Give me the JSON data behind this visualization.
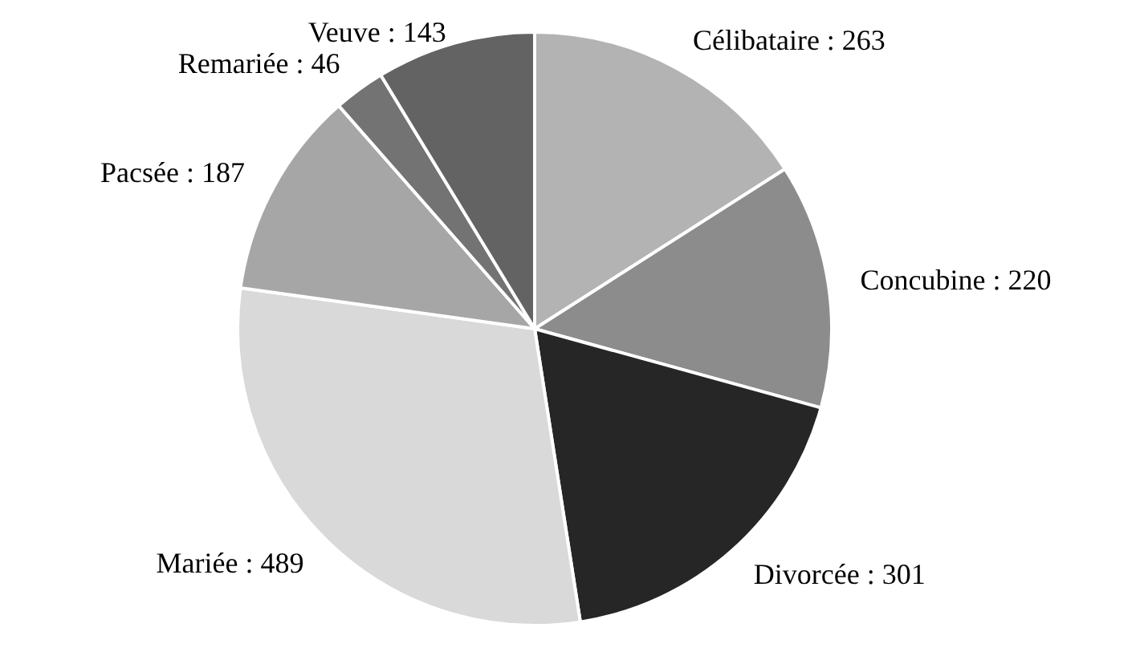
{
  "chart_data": {
    "type": "pie",
    "categories": [
      "Célibataire",
      "Concubine",
      "Divorcée",
      "Mariée",
      "Pacsée",
      "Remariée",
      "Veuve"
    ],
    "values": [
      263,
      220,
      301,
      489,
      187,
      46,
      143
    ],
    "colors": [
      "#b3b3b3",
      "#8c8c8c",
      "#262626",
      "#d9d9d9",
      "#a6a6a6",
      "#737373",
      "#636363"
    ],
    "value_labels": [
      ": 263",
      ": 220",
      ": 301",
      ": 489",
      ": 187",
      ": 46",
      ": 143"
    ],
    "legend": false
  }
}
